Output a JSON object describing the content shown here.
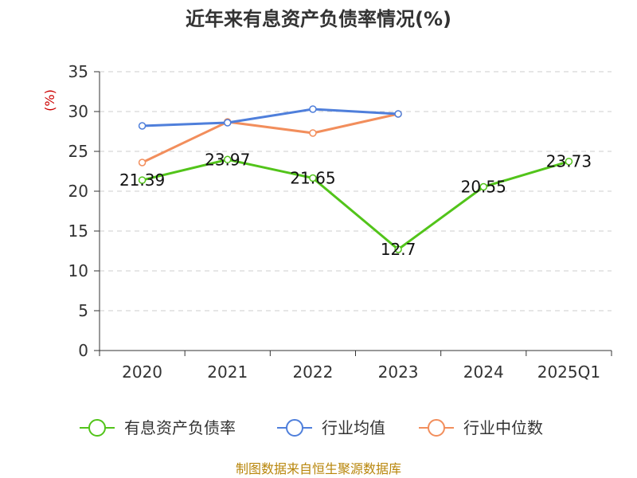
{
  "chart_data": {
    "type": "line",
    "title": "近年来有息资产负债率情况(%)",
    "ylabel": "(%)",
    "categories": [
      "2020",
      "2021",
      "2022",
      "2023",
      "2024",
      "2025Q1"
    ],
    "ylim": [
      0,
      35
    ],
    "yticks": [
      0,
      5,
      10,
      15,
      20,
      25,
      30,
      35
    ],
    "grid": true,
    "legend_position": "bottom",
    "series": [
      {
        "name": "有息资产负债率",
        "color": "#52c41a",
        "show_labels": true,
        "values": [
          21.39,
          23.97,
          21.65,
          12.7,
          20.55,
          23.73
        ]
      },
      {
        "name": "行业均值",
        "color": "#4f7fdb",
        "show_labels": false,
        "values": [
          28.2,
          28.6,
          30.3,
          29.7,
          null,
          null
        ]
      },
      {
        "name": "行业中位数",
        "color": "#f28e5c",
        "show_labels": false,
        "values": [
          23.6,
          28.7,
          27.3,
          29.7,
          null,
          null
        ]
      }
    ],
    "labels": [
      "21.39",
      "23.97",
      "21.65",
      "12.7",
      "20.55",
      "23.73"
    ]
  },
  "source": "制图数据来自恒生聚源数据库"
}
